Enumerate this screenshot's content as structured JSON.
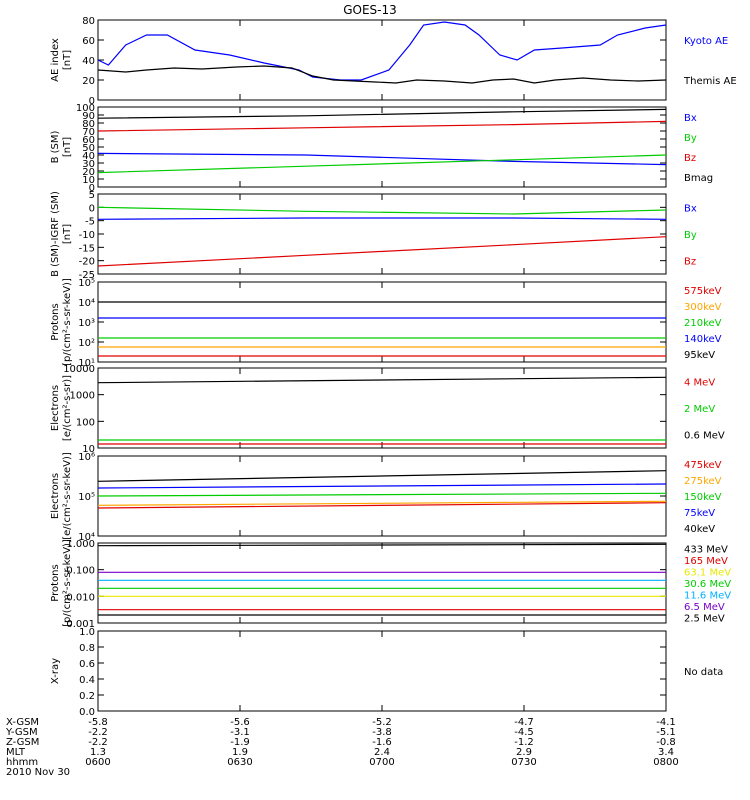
{
  "title": "GOES-13",
  "colors": {
    "black": "#000000",
    "blue": "#0000ff",
    "red": "#e00000",
    "green": "#00cc00",
    "orange": "#ffa500",
    "cyan": "#00b0ff",
    "purple": "#7a00cc",
    "yellow": "#e8e800"
  },
  "chart_data": [
    {
      "type": "line",
      "ylabel": [
        "AE index",
        "[nT]"
      ],
      "ylim": [
        0,
        80
      ],
      "yticks": [
        "0",
        "20",
        "40",
        "60",
        "80"
      ],
      "x": [
        "0600",
        "0630",
        "0700",
        "0730",
        "0800"
      ],
      "series": [
        {
          "name": "Kyoto AE",
          "color": "blue",
          "label_index": 0,
          "points": [
            [
              0,
              40
            ],
            [
              3,
              35
            ],
            [
              8,
              55
            ],
            [
              14,
              65
            ],
            [
              20,
              65
            ],
            [
              28,
              50
            ],
            [
              38,
              45
            ],
            [
              48,
              37
            ],
            [
              58,
              30
            ],
            [
              62,
              23
            ],
            [
              70,
              20
            ],
            [
              76,
              20
            ],
            [
              84,
              30
            ],
            [
              90,
              55
            ],
            [
              94,
              75
            ],
            [
              100,
              78
            ],
            [
              106,
              75
            ],
            [
              110,
              65
            ],
            [
              116,
              45
            ],
            [
              121,
              40
            ],
            [
              126,
              50
            ],
            [
              134,
              52
            ],
            [
              145,
              55
            ],
            [
              150,
              65
            ],
            [
              158,
              72
            ],
            [
              164,
              75
            ]
          ]
        },
        {
          "name": "Themis AE",
          "color": "black",
          "label_index": 1,
          "points": [
            [
              0,
              30
            ],
            [
              8,
              28
            ],
            [
              14,
              30
            ],
            [
              22,
              32
            ],
            [
              30,
              31
            ],
            [
              40,
              33
            ],
            [
              48,
              34
            ],
            [
              56,
              32
            ],
            [
              62,
              24
            ],
            [
              68,
              20
            ],
            [
              74,
              19
            ],
            [
              80,
              18
            ],
            [
              86,
              17
            ],
            [
              92,
              20
            ],
            [
              100,
              19
            ],
            [
              108,
              17
            ],
            [
              114,
              20
            ],
            [
              120,
              21
            ],
            [
              126,
              17
            ],
            [
              132,
              20
            ],
            [
              140,
              22
            ],
            [
              148,
              20
            ],
            [
              156,
              19
            ],
            [
              164,
              20
            ]
          ]
        }
      ]
    },
    {
      "type": "line",
      "ylabel": [
        "B (SM)",
        "[nT]"
      ],
      "ylim": [
        0,
        100
      ],
      "yticks": [
        "0",
        "10",
        "20",
        "30",
        "40",
        "50",
        "60",
        "70",
        "80",
        "90",
        "100"
      ],
      "x": [
        "0600",
        "0630",
        "0700",
        "0730",
        "0800"
      ],
      "series": [
        {
          "name": "Bx",
          "color": "blue",
          "label_index": 0,
          "points": [
            [
              0,
              42
            ],
            [
              60,
              40
            ],
            [
              120,
              32
            ],
            [
              164,
              28
            ]
          ]
        },
        {
          "name": "By",
          "color": "green",
          "label_index": 1,
          "points": [
            [
              0,
              18
            ],
            [
              60,
              26
            ],
            [
              120,
              34
            ],
            [
              164,
              40
            ]
          ]
        },
        {
          "name": "Bz",
          "color": "red",
          "label_index": 2,
          "points": [
            [
              0,
              70
            ],
            [
              60,
              74
            ],
            [
              120,
              78
            ],
            [
              164,
              82
            ]
          ]
        },
        {
          "name": "Bmag",
          "color": "black",
          "label_index": 3,
          "points": [
            [
              0,
              86
            ],
            [
              60,
              89
            ],
            [
              120,
              94
            ],
            [
              164,
              97
            ]
          ]
        }
      ]
    },
    {
      "type": "line",
      "ylabel": [
        "B (SM)-IGRF (SM)",
        "[nT]"
      ],
      "ylim": [
        -25,
        5
      ],
      "yticks": [
        "-25",
        "-20",
        "-15",
        "-10",
        "-5",
        "0",
        "5"
      ],
      "x": [
        "0600",
        "0630",
        "0700",
        "0730",
        "0800"
      ],
      "series": [
        {
          "name": "Bx",
          "color": "blue",
          "label_index": 0,
          "points": [
            [
              0,
              -4.5
            ],
            [
              60,
              -4
            ],
            [
              120,
              -4
            ],
            [
              164,
              -4.5
            ]
          ]
        },
        {
          "name": "By",
          "color": "green",
          "label_index": 1,
          "points": [
            [
              0,
              0
            ],
            [
              60,
              -1.5
            ],
            [
              120,
              -2.5
            ],
            [
              164,
              -1
            ]
          ]
        },
        {
          "name": "Bz",
          "color": "red",
          "label_index": 2,
          "points": [
            [
              0,
              -22
            ],
            [
              60,
              -18
            ],
            [
              120,
              -14
            ],
            [
              164,
              -11
            ]
          ]
        }
      ]
    },
    {
      "type": "line",
      "log": true,
      "ylabel": [
        "Protons",
        "[p/(cm²-s-sr-keV)]"
      ],
      "ylim": [
        1,
        5
      ],
      "yticks": [
        "10¹",
        "10²",
        "10³",
        "10⁴",
        "10⁵"
      ],
      "x": [
        "0600",
        "0630",
        "0700",
        "0730",
        "0800"
      ],
      "series": [
        {
          "name": "575keV",
          "color": "red",
          "label_index": 0,
          "points": [
            [
              0,
              1.3
            ],
            [
              164,
              1.3
            ]
          ]
        },
        {
          "name": "300keV",
          "color": "orange",
          "label_index": 1,
          "points": [
            [
              0,
              1.75
            ],
            [
              164,
              1.75
            ]
          ]
        },
        {
          "name": "210keV",
          "color": "green",
          "label_index": 2,
          "points": [
            [
              0,
              2.2
            ],
            [
              164,
              2.2
            ]
          ]
        },
        {
          "name": "140keV",
          "color": "blue",
          "label_index": 3,
          "points": [
            [
              0,
              3.2
            ],
            [
              164,
              3.2
            ]
          ]
        },
        {
          "name": "95keV",
          "color": "black",
          "label_index": 4,
          "points": [
            [
              0,
              4.0
            ],
            [
              164,
              4.0
            ]
          ]
        }
      ]
    },
    {
      "type": "line",
      "log": true,
      "ylabel": [
        "Electrons",
        "[e/(cm²-s-sr)]"
      ],
      "ylim": [
        1,
        4
      ],
      "yticks": [
        "10",
        "100",
        "1000",
        "10000"
      ],
      "x": [
        "0600",
        "0630",
        "0700",
        "0730",
        "0800"
      ],
      "series": [
        {
          "name": "4 MeV",
          "color": "red",
          "label_index": 0,
          "points": [
            [
              0,
              1.15
            ],
            [
              164,
              1.15
            ]
          ]
        },
        {
          "name": "2 MeV",
          "color": "green",
          "label_index": 1,
          "points": [
            [
              0,
              1.3
            ],
            [
              164,
              1.3
            ]
          ]
        },
        {
          "name": "0.6 MeV",
          "color": "black",
          "label_index": 2,
          "points": [
            [
              0,
              3.45
            ],
            [
              164,
              3.65
            ]
          ]
        }
      ]
    },
    {
      "type": "line",
      "log": true,
      "ylabel": [
        "Electrons",
        "[e/(cm²-s-sr-keV)]"
      ],
      "ylim": [
        3,
        6
      ],
      "yticks": [
        "10⁴",
        "10⁵",
        "10⁶"
      ],
      "x": [
        "0600",
        "0630",
        "0700",
        "0730",
        "0800"
      ],
      "series": [
        {
          "name": "475keV",
          "color": "red",
          "label_index": 0,
          "points": [
            [
              0,
              4.05
            ],
            [
              164,
              4.25
            ]
          ]
        },
        {
          "name": "275keV",
          "color": "orange",
          "label_index": 1,
          "points": [
            [
              0,
              4.15
            ],
            [
              164,
              4.3
            ]
          ]
        },
        {
          "name": "150keV",
          "color": "green",
          "label_index": 2,
          "points": [
            [
              0,
              4.5
            ],
            [
              164,
              4.6
            ]
          ]
        },
        {
          "name": "75keV",
          "color": "blue",
          "label_index": 3,
          "points": [
            [
              0,
              4.8
            ],
            [
              164,
              4.95
            ]
          ]
        },
        {
          "name": "40keV",
          "color": "black",
          "label_index": 4,
          "points": [
            [
              0,
              5.05
            ],
            [
              164,
              5.45
            ]
          ]
        }
      ]
    },
    {
      "type": "line",
      "log": true,
      "ylabel": [
        "Protons",
        "[p/(cm²-s-sr-keV)]"
      ],
      "ylim": [
        -3,
        0
      ],
      "yticks": [
        "0.001",
        "0.010",
        "0.100",
        "1.000"
      ],
      "x": [
        "0600",
        "0630",
        "0700",
        "0730",
        "0800"
      ],
      "series": [
        {
          "name": "433 MeV",
          "color": "black",
          "label_index": 0,
          "points": [
            [
              0,
              -0.1
            ],
            [
              164,
              -0.05
            ]
          ]
        },
        {
          "name": "165 MeV",
          "color": "red",
          "label_index": 1,
          "points": [
            [
              0,
              -2.5
            ],
            [
              164,
              -2.5
            ]
          ]
        },
        {
          "name": "63.1 MeV",
          "color": "yellow",
          "label_index": 2,
          "points": [
            [
              0,
              -2.0
            ],
            [
              164,
              -2.0
            ]
          ]
        },
        {
          "name": "30.6 MeV",
          "color": "green",
          "label_index": 3,
          "points": [
            [
              0,
              -1.7
            ],
            [
              164,
              -1.7
            ]
          ]
        },
        {
          "name": "11.6 MeV",
          "color": "cyan",
          "label_index": 4,
          "points": [
            [
              0,
              -1.4
            ],
            [
              164,
              -1.4
            ]
          ]
        },
        {
          "name": "6.5 MeV",
          "color": "purple",
          "label_index": 5,
          "points": [
            [
              0,
              -1.1
            ],
            [
              164,
              -1.1
            ]
          ]
        },
        {
          "name": "2.5 MeV",
          "color": "black",
          "label_index": 6,
          "points": [
            [
              0,
              -2.7
            ],
            [
              164,
              -2.7
            ]
          ]
        }
      ]
    },
    {
      "type": "line",
      "ylabel": [
        "X-ray"
      ],
      "ylim": [
        0,
        1
      ],
      "yticks": [
        "0.0",
        "0.2",
        "0.4",
        "0.6",
        "0.8",
        "1.0"
      ],
      "x": [
        "0600",
        "0630",
        "0700",
        "0730",
        "0800"
      ],
      "series": [],
      "no_data": "No data"
    }
  ],
  "footer": {
    "rows": [
      {
        "label": "X-GSM",
        "values": [
          "-5.8",
          "-5.6",
          "-5.2",
          "-4.7",
          "-4.1"
        ]
      },
      {
        "label": "Y-GSM",
        "values": [
          "-2.2",
          "-3.1",
          "-3.8",
          "-4.5",
          "-5.1"
        ]
      },
      {
        "label": "Z-GSM",
        "values": [
          "-2.2",
          "-1.9",
          "-1.6",
          "-1.2",
          "-0.8"
        ]
      },
      {
        "label": "MLT",
        "values": [
          "1.3",
          "1.9",
          "2.4",
          "2.9",
          "3.4"
        ]
      },
      {
        "label": "hhmm",
        "values": [
          "0600",
          "0630",
          "0700",
          "0730",
          "0800"
        ]
      }
    ],
    "date": "2010 Nov 30"
  }
}
